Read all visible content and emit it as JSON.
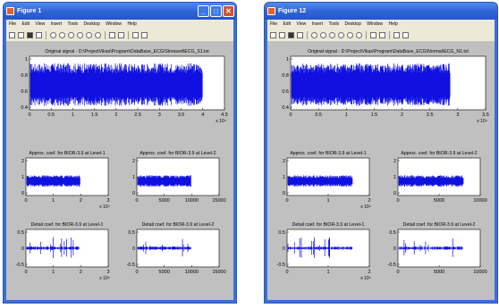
{
  "windows": [
    {
      "title": "Figure 1",
      "menu": [
        "File",
        "Edit",
        "View",
        "Insert",
        "Tools",
        "Desktop",
        "Window",
        "Help"
      ],
      "plots": [
        {
          "title": "Original signal - D:\\ProjectVikas\\Program\\DataBase_ECG\\Stressed\\ECG_S1.txt",
          "yticks": [
            "1",
            "0.8",
            "0.6",
            "0.4"
          ],
          "xticks": [
            "0",
            "0.5",
            "1",
            "1.5",
            "2",
            "2.5",
            "3",
            "3.5",
            "4",
            "4.5"
          ],
          "xexp": "x 10⁴"
        },
        {
          "title": "Approx. coef. for BIOR-3.9 at Level-1",
          "yticks": [
            "2",
            "1",
            "0"
          ],
          "xticks": [
            "0",
            "1",
            "2",
            "3"
          ],
          "xexp": "x 10⁴"
        },
        {
          "title": "Approx. coef. for BIOR-3.9 at Level-2",
          "yticks": [
            "2",
            "1",
            "0"
          ],
          "xticks": [
            "0",
            "5000",
            "10000",
            "15000"
          ],
          "xexp": ""
        },
        {
          "title": "Detail coef. for BIOR-3.9 at Level-1",
          "yticks": [
            "0.5",
            "0",
            "-0.5"
          ],
          "xticks": [
            "0",
            "1",
            "2",
            "3"
          ],
          "xexp": "x 10⁴"
        },
        {
          "title": "Detail coef. for BIOR-3.9 at Level-2",
          "yticks": [
            "0.5",
            "0",
            "-0.5"
          ],
          "xticks": [
            "0",
            "5000",
            "10000",
            "15000"
          ],
          "xexp": ""
        }
      ]
    },
    {
      "title": "Figure 12",
      "menu": [
        "File",
        "Edit",
        "View",
        "Insert",
        "Tools",
        "Desktop",
        "Window",
        "Help"
      ],
      "plots": [
        {
          "title": "Original signal - D:\\ProjectVikas\\Program\\DataBase_ECG\\Normal\\ECG_N1.txt",
          "yticks": [
            "1",
            "0.8",
            "0.6",
            "0.4"
          ],
          "xticks": [
            "0",
            "0.5",
            "1",
            "1.5",
            "2",
            "2.5",
            "3",
            "3.5"
          ],
          "xexp": "x 10⁴"
        },
        {
          "title": "Approx. coef. for BIOR-3.9 at Level-1",
          "yticks": [
            "2",
            "1",
            "0"
          ],
          "xticks": [
            "0",
            "1",
            "2"
          ],
          "xexp": "x 10⁴"
        },
        {
          "title": "Approx. coef. for BIOR-3.9 at Level-2",
          "yticks": [
            "2",
            "1",
            "0"
          ],
          "xticks": [
            "0",
            "5000",
            "10000"
          ],
          "xexp": ""
        },
        {
          "title": "Detail coef. for BIOR-3.9 at Level-1",
          "yticks": [
            "0.5",
            "0",
            "-0.5"
          ],
          "xticks": [
            "0",
            "1",
            "2"
          ],
          "xexp": "x 10⁴"
        },
        {
          "title": "Detail coef. for BIOR-3.9 at Level-2",
          "yticks": [
            "0.5",
            "0",
            "-0.5"
          ],
          "xticks": [
            "0",
            "5000",
            "10000"
          ],
          "xexp": ""
        }
      ]
    }
  ],
  "colors": {
    "signal": "#1010e0",
    "axes_bg": "#ffffff",
    "figure_bg": "#c0c0c0",
    "titlebar": "#2f63d6"
  }
}
